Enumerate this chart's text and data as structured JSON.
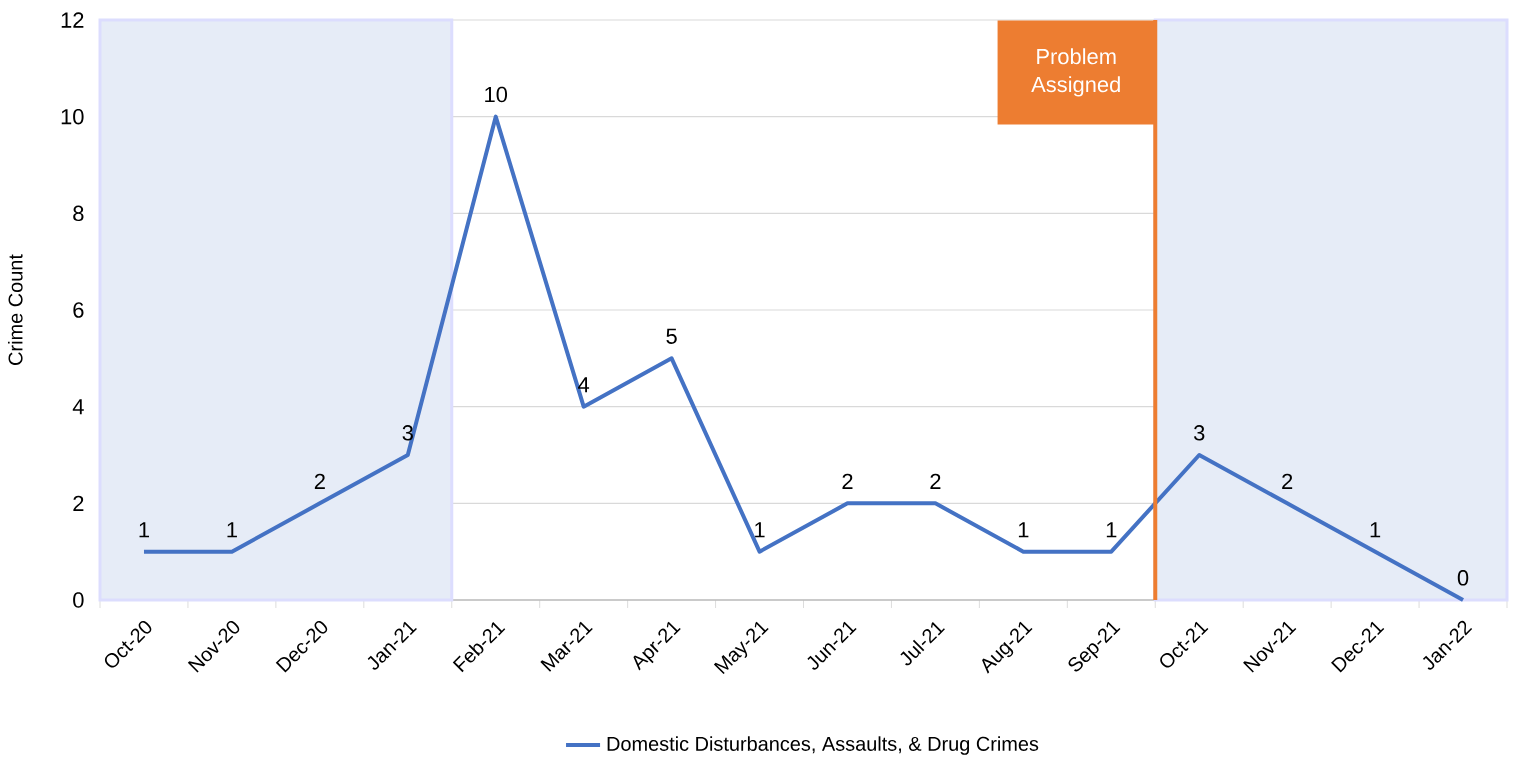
{
  "chart_data": {
    "type": "line",
    "ylabel": "Crime Count",
    "categories": [
      "Oct-20",
      "Nov-20",
      "Dec-20",
      "Jan-21",
      "Feb-21",
      "Mar-21",
      "Apr-21",
      "May-21",
      "Jun-21",
      "Jul-21",
      "Aug-21",
      "Sep-21",
      "Oct-21",
      "Nov-21",
      "Dec-21",
      "Jan-22"
    ],
    "series": [
      {
        "name": "Domestic Disturbances, Assaults, & Drug Crimes",
        "color": "#4472c4",
        "values": [
          1,
          1,
          2,
          3,
          10,
          4,
          5,
          1,
          2,
          2,
          1,
          1,
          3,
          2,
          1,
          0
        ]
      }
    ],
    "ylim": [
      0,
      12
    ],
    "yticks": [
      0,
      2,
      4,
      6,
      8,
      10,
      12
    ],
    "grid": "y",
    "legend": "bottom",
    "data_labels": true,
    "bands": [
      {
        "axis": "x",
        "from": "Oct-20",
        "to": "Jan-21",
        "color": "#e6ecf7"
      },
      {
        "axis": "x",
        "from": "Oct-21",
        "to": "Jan-22",
        "color": "#e6ecf7"
      }
    ],
    "ref_lines": [
      {
        "axis": "x",
        "value": "Oct-21",
        "label": "Problem Assigned",
        "color": "#ed7d31"
      }
    ]
  }
}
